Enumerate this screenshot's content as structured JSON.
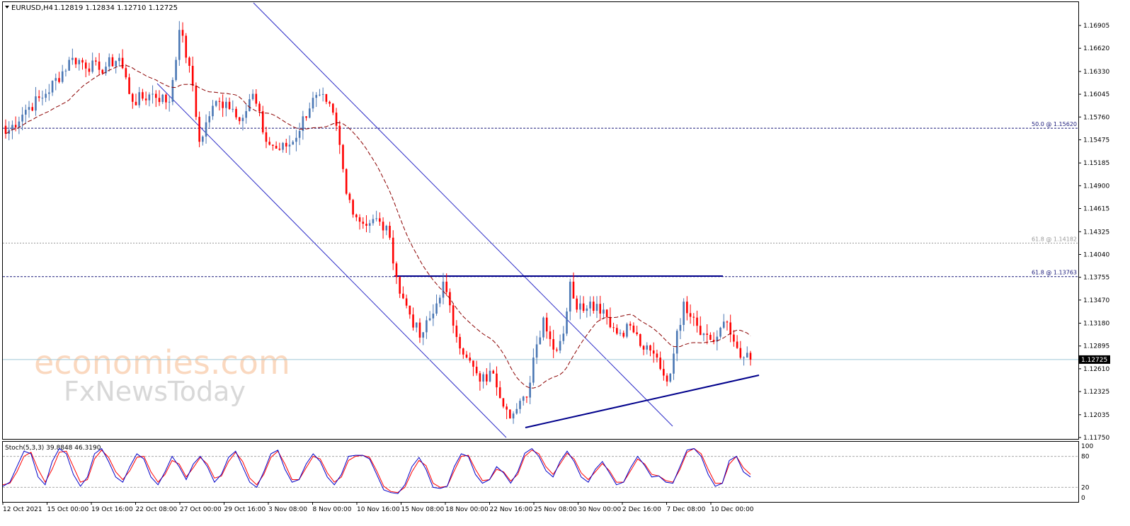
{
  "header": {
    "symbol": "EURUSD,H4",
    "ohlc": "1.12819 1.12834 1.12710 1.12725"
  },
  "watermark": {
    "line1": "economies.com",
    "line2": "FxNewsToday"
  },
  "colors": {
    "bull": "#4a77b4",
    "bear": "#ff0000",
    "ma": "#8b0000",
    "channel": "#2d2dc8",
    "support": "#00008b",
    "stoch_main": "#0000c8",
    "stoch_signal": "#ff0000",
    "price_line": "#9fc8d8"
  },
  "chart_data": [
    {
      "type": "candlestick",
      "title": "EURUSD,H4",
      "price_axis_ticks": [
        "1.16905",
        "1.16620",
        "1.16330",
        "1.16045",
        "1.15760",
        "1.15475",
        "1.15185",
        "1.14900",
        "1.14615",
        "1.14325",
        "1.14040",
        "1.13755",
        "1.13470",
        "1.13180",
        "1.12895",
        "1.12610",
        "1.12325",
        "1.12035",
        "1.11750"
      ],
      "ylim": [
        1.1175,
        1.1715
      ],
      "x_ticks": [
        "12 Oct 2021",
        "15 Oct 00:00",
        "19 Oct 16:00",
        "22 Oct 08:00",
        "27 Oct 00:00",
        "29 Oct 16:00",
        "3 Nov 08:00",
        "8 Nov 00:00",
        "10 Nov 16:00",
        "15 Nov 08:00",
        "18 Nov 00:00",
        "22 Nov 16:00",
        "25 Nov 08:00",
        "30 Nov 00:00",
        "2 Dec 16:00",
        "7 Dec 08:00",
        "10 Dec 00:00"
      ],
      "last_price": "1.12725",
      "last_price_value": 1.12725,
      "fibonacci_levels": [
        {
          "label": "50.0 @ 1.15620",
          "value": 1.1562
        },
        {
          "label": "61.8 @ 1.14182",
          "value": 1.14182
        },
        {
          "label": "61.8 @ 1.13763",
          "value": 1.13763
        }
      ],
      "resistance_level": 1.1377,
      "key_points": [
        {
          "bar": 0,
          "close": 1.1555
        },
        {
          "bar": 6,
          "close": 1.1585
        },
        {
          "bar": 12,
          "close": 1.1605
        },
        {
          "bar": 20,
          "close": 1.165
        },
        {
          "bar": 28,
          "close": 1.1635
        },
        {
          "bar": 34,
          "close": 1.165
        },
        {
          "bar": 38,
          "close": 1.1595
        },
        {
          "bar": 44,
          "close": 1.1605
        },
        {
          "bar": 49,
          "close": 1.1595
        },
        {
          "bar": 52,
          "close": 1.1685
        },
        {
          "bar": 55,
          "close": 1.164
        },
        {
          "bar": 58,
          "close": 1.1545
        },
        {
          "bar": 62,
          "close": 1.159
        },
        {
          "bar": 66,
          "close": 1.1595
        },
        {
          "bar": 71,
          "close": 1.1575
        },
        {
          "bar": 74,
          "close": 1.1605
        },
        {
          "bar": 78,
          "close": 1.1545
        },
        {
          "bar": 82,
          "close": 1.1535
        },
        {
          "bar": 86,
          "close": 1.1545
        },
        {
          "bar": 92,
          "close": 1.16
        },
        {
          "bar": 96,
          "close": 1.1595
        },
        {
          "bar": 99,
          "close": 1.1565
        },
        {
          "bar": 102,
          "close": 1.148
        },
        {
          "bar": 106,
          "close": 1.1445
        },
        {
          "bar": 112,
          "close": 1.1445
        },
        {
          "bar": 115,
          "close": 1.1425
        },
        {
          "bar": 118,
          "close": 1.1355
        },
        {
          "bar": 120,
          "close": 1.134
        },
        {
          "bar": 124,
          "close": 1.13
        },
        {
          "bar": 128,
          "close": 1.133
        },
        {
          "bar": 131,
          "close": 1.137
        },
        {
          "bar": 134,
          "close": 1.1315
        },
        {
          "bar": 138,
          "close": 1.1275
        },
        {
          "bar": 142,
          "close": 1.1245
        },
        {
          "bar": 146,
          "close": 1.1255
        },
        {
          "bar": 150,
          "close": 1.121
        },
        {
          "bar": 152,
          "close": 1.1205
        },
        {
          "bar": 156,
          "close": 1.1225
        },
        {
          "bar": 158,
          "close": 1.1275
        },
        {
          "bar": 161,
          "close": 1.1325
        },
        {
          "bar": 164,
          "close": 1.1285
        },
        {
          "bar": 167,
          "close": 1.1305
        },
        {
          "bar": 169,
          "close": 1.137
        },
        {
          "bar": 171,
          "close": 1.1335
        },
        {
          "bar": 175,
          "close": 1.1345
        },
        {
          "bar": 179,
          "close": 1.1335
        },
        {
          "bar": 183,
          "close": 1.1305
        },
        {
          "bar": 187,
          "close": 1.1315
        },
        {
          "bar": 191,
          "close": 1.1285
        },
        {
          "bar": 195,
          "close": 1.1275
        },
        {
          "bar": 198,
          "close": 1.1245
        },
        {
          "bar": 200,
          "close": 1.128
        },
        {
          "bar": 203,
          "close": 1.1345
        },
        {
          "bar": 206,
          "close": 1.1325
        },
        {
          "bar": 209,
          "close": 1.1305
        },
        {
          "bar": 212,
          "close": 1.1295
        },
        {
          "bar": 215,
          "close": 1.132
        },
        {
          "bar": 218,
          "close": 1.1295
        },
        {
          "bar": 221,
          "close": 1.1275
        },
        {
          "bar": 223,
          "close": 1.12725
        }
      ]
    },
    {
      "type": "line",
      "title": "Stoch(5,3,3) 39.8848 46.3190",
      "y_ticks": [
        "100",
        "80",
        "20",
        "0"
      ],
      "ylim": [
        0,
        100
      ],
      "levels": [
        80,
        20
      ],
      "series": [
        {
          "values": [
            22,
            30,
            60,
            90,
            85,
            40,
            25,
            70,
            95,
            85,
            45,
            22,
            40,
            85,
            95,
            70,
            40,
            30,
            60,
            85,
            75,
            40,
            25,
            50,
            80,
            60,
            35,
            65,
            80,
            60,
            30,
            45,
            78,
            90,
            60,
            30,
            20,
            50,
            85,
            92,
            55,
            30,
            35,
            65,
            85,
            70,
            40,
            25,
            45,
            80,
            82,
            82,
            75,
            45,
            15,
            10,
            8,
            25,
            60,
            78,
            55,
            20,
            18,
            22,
            60,
            85,
            80,
            45,
            28,
            35,
            60,
            48,
            28,
            50,
            86,
            95,
            80,
            52,
            40,
            70,
            90,
            70,
            40,
            30,
            55,
            70,
            48,
            25,
            30,
            58,
            80,
            62,
            40,
            42,
            30,
            28,
            60,
            92,
            95,
            80,
            45,
            22,
            28,
            72,
            80,
            50,
            40
          ]
        },
        {
          "values": [
            25,
            28,
            50,
            80,
            88,
            55,
            30,
            55,
            88,
            90,
            60,
            30,
            35,
            75,
            92,
            78,
            50,
            35,
            52,
            78,
            80,
            50,
            30,
            45,
            72,
            65,
            40,
            58,
            78,
            65,
            38,
            42,
            70,
            88,
            70,
            38,
            25,
            45,
            78,
            90,
            65,
            35,
            35,
            58,
            80,
            75,
            48,
            30,
            40,
            72,
            80,
            82,
            78,
            52,
            22,
            12,
            10,
            20,
            50,
            72,
            62,
            28,
            20,
            22,
            52,
            80,
            82,
            55,
            33,
            35,
            55,
            50,
            32,
            45,
            80,
            92,
            85,
            60,
            45,
            65,
            86,
            75,
            48,
            35,
            50,
            66,
            52,
            30,
            30,
            52,
            75,
            65,
            45,
            42,
            33,
            30,
            55,
            88,
            95,
            85,
            55,
            28,
            28,
            65,
            80,
            58,
            45
          ]
        }
      ]
    }
  ]
}
